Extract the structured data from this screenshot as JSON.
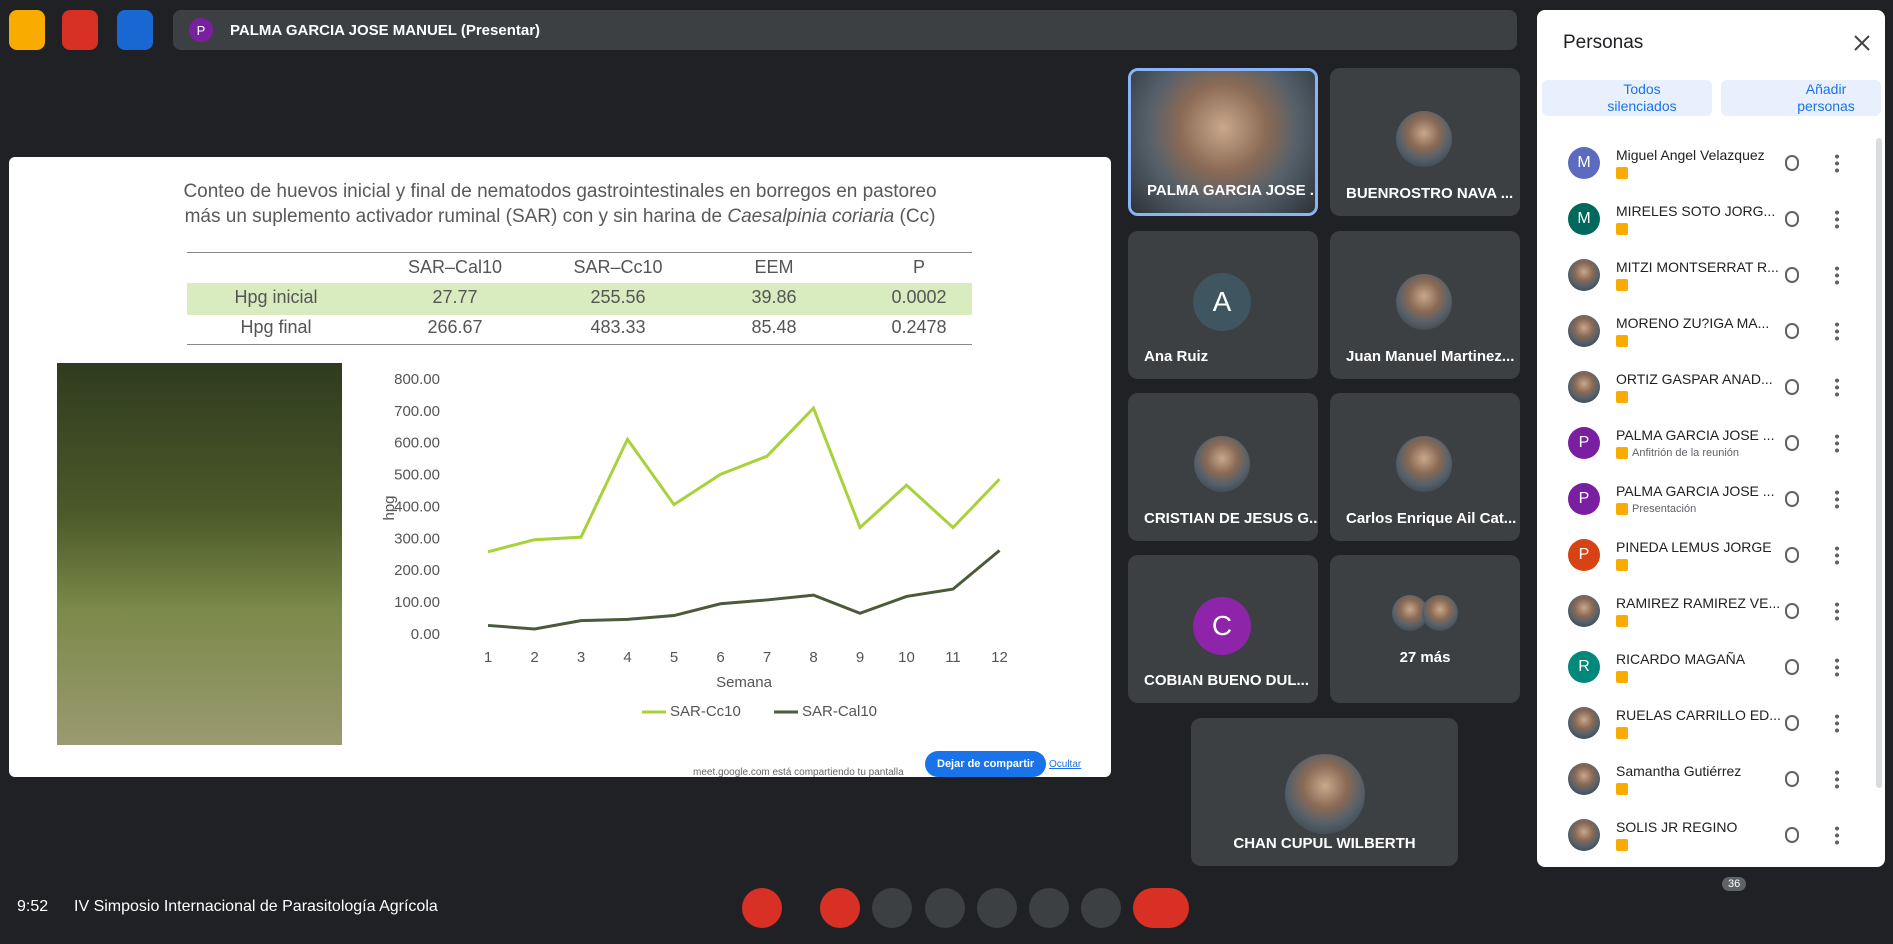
{
  "top_bar": {
    "presenter_initial": "P",
    "presenter_label": "PALMA GARCIA JOSE MANUEL (Presentar)"
  },
  "slide": {
    "title_line1": "Conteo de huevos inicial y final de nematodos gastrointestinales en  borregos en pastoreo",
    "title_line2": "más un suplemento activador ruminal (SAR) con y sin harina de ",
    "title_italic": "Caesalpinia coriaria",
    "title_end": " (Cc)",
    "table": {
      "header": [
        "SAR–Cal10",
        "SAR–Cc10",
        "EEM",
        "P"
      ],
      "rows": [
        [
          "Hpg inicial",
          "27.77",
          "255.56",
          "39.86",
          "0.0002"
        ],
        [
          "Hpg final",
          "266.67",
          "483.33",
          "85.48",
          "0.2478"
        ]
      ]
    },
    "chart": {
      "type": "line",
      "y_label": "hpg",
      "x_label": "Semana",
      "categories": [
        "1",
        "2",
        "3",
        "4",
        "5",
        "6",
        "7",
        "8",
        "9",
        "10",
        "11",
        "12"
      ],
      "series": [
        {
          "name": "SAR-Cc10",
          "color": "#a8d13a",
          "values": [
            261,
            299,
            307,
            614,
            409,
            504,
            561,
            712,
            337,
            470,
            337,
            489
          ]
        },
        {
          "name": "SAR-Cal10",
          "color": "#4a5a3a",
          "values": [
            30,
            19,
            45,
            49,
            61,
            98,
            110,
            125,
            68,
            121,
            144,
            265
          ]
        }
      ],
      "ylim": [
        0,
        800
      ],
      "yticks": [
        {
          "value": 0,
          "label": "0.00"
        },
        {
          "value": 100,
          "label": "100.00"
        },
        {
          "value": 200,
          "label": "200.00"
        },
        {
          "value": 300,
          "label": "300.00"
        },
        {
          "value": 400,
          "label": "400.00"
        },
        {
          "value": 500,
          "label": "500.00"
        },
        {
          "value": 600,
          "label": "600.00"
        },
        {
          "value": 700,
          "label": "700.00"
        },
        {
          "value": 800,
          "label": "800.00"
        }
      ]
    },
    "share_notice": "meet.google.com está compartiendo tu pantalla",
    "stop_button": "Dejar de compartir",
    "hide_link": "Ocultar"
  },
  "tiles": [
    {
      "name": "PALMA GARCIA JOSE ..."
    },
    {
      "name": "BUENROSTRO NAVA ..."
    },
    {
      "name": "Ana Ruiz",
      "initial": "A",
      "color": "#3f5560"
    },
    {
      "name": "Juan Manuel Martinez..."
    },
    {
      "name": "CRISTIAN DE JESUS G..."
    },
    {
      "name": "Carlos Enrique Ail Cat..."
    },
    {
      "name": "COBIAN BUENO DUL...",
      "initial": "C",
      "color": "#8e24aa"
    }
  ],
  "more_tile": {
    "label": "27 más"
  },
  "bottom_tile": {
    "name": "CHAN CUPUL WILBERTH"
  },
  "panel": {
    "title": "Personas",
    "mute_all": "Todos silenciados",
    "add": "Añadir personas",
    "participants": [
      {
        "name": "Miguel Angel Velazquez",
        "initial": "M",
        "color": "#5c6bc0"
      },
      {
        "name": "MIRELES SOTO JORG...",
        "initial": "M",
        "color": "#00695c"
      },
      {
        "name": "MITZI MONTSERRAT R..."
      },
      {
        "name": "MORENO ZU?IGA MA..."
      },
      {
        "name": "ORTIZ GASPAR ANAD..."
      },
      {
        "name": "PALMA GARCIA JOSE ...",
        "initial": "P",
        "color": "#7b1fa2",
        "role": "Anfitrión de la reunión"
      },
      {
        "name": "PALMA GARCIA JOSE ...",
        "initial": "P",
        "color": "#7b1fa2",
        "role": "Presentación"
      },
      {
        "name": "PINEDA LEMUS JORGE",
        "initial": "P",
        "color": "#d84315"
      },
      {
        "name": "RAMIREZ RAMIREZ VE..."
      },
      {
        "name": "RICARDO MAGAÑA",
        "initial": "R",
        "color": "#00897b"
      },
      {
        "name": "RUELAS CARRILLO ED..."
      },
      {
        "name": "Samantha Gutiérrez"
      },
      {
        "name": "SOLIS JR REGINO"
      }
    ]
  },
  "bottom": {
    "time": "9:52",
    "meeting": "IV Simposio Internacional de Parasitología Agrícola",
    "people_count": "36"
  }
}
